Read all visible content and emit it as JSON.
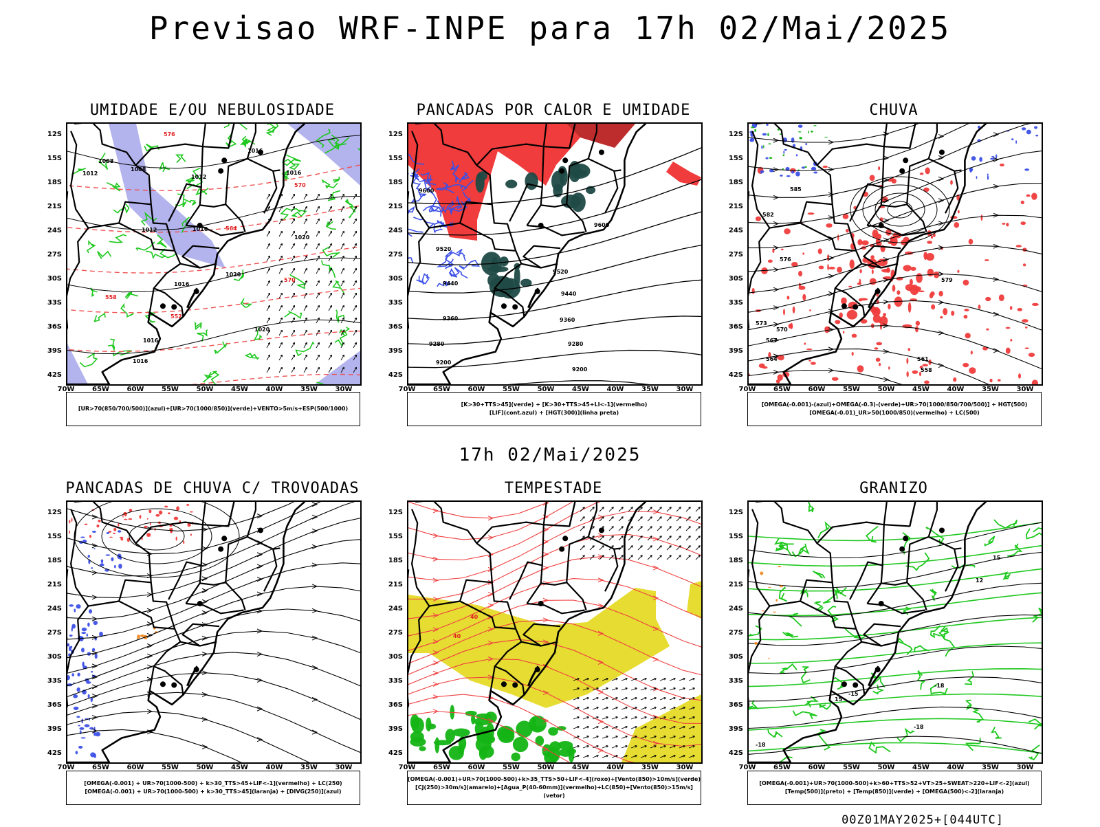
{
  "header": {
    "title": "Previsao WRF-INPE  para 17h 02/Mai/2025"
  },
  "mid_title": "17h 02/Mai/2025",
  "footer": "00Z01MAY2025+[044UTC]",
  "axes": {
    "lat_labels": [
      "12S",
      "15S",
      "18S",
      "21S",
      "24S",
      "27S",
      "30S",
      "33S",
      "36S",
      "39S",
      "42S"
    ],
    "lon_labels": [
      "70W",
      "65W",
      "60W",
      "55W",
      "50W",
      "45W",
      "40W",
      "35W",
      "30W"
    ]
  },
  "panels": [
    {
      "title": "UMIDADE E/OU NEBULOSIDADE",
      "legend": [
        "[UR>70(850/700/500)](azul)+[UR>70(1000/850)](verde)+VENTO>5m/s+ESP(500/1000)"
      ],
      "contour_labels": [
        "1008",
        "1012",
        "1008",
        "1012",
        "1016",
        "1016",
        "1012",
        "1016",
        "1020",
        "1016",
        "1020",
        "1016",
        "1020",
        "1016",
        "576",
        "570",
        "564",
        "558",
        "552",
        "570"
      ]
    },
    {
      "title": "PANCADAS POR CALOR E UMIDADE",
      "legend": [
        "[K>30+TTS>45](verde) + [K>30+TTS>45+LI<-1](vermelho)",
        "[LIF](cont.azul) + [HGT(300)](linha preta)"
      ],
      "contour_labels": [
        "9600",
        "9600",
        "9520",
        "9520",
        "9440",
        "9440",
        "9360",
        "9360",
        "9280",
        "9280",
        "9200",
        "9200"
      ]
    },
    {
      "title": "CHUVA",
      "legend": [
        "[OMEGA(-0.001)-(azul)+OMEGA(-0.3)-(verde)+UR>70(1000/850/700/500)] + HGT(500)",
        "[OMEGA(-0.01)_UR>50(1000/850)(vermelho) + LC(500)"
      ],
      "contour_labels": [
        "585",
        "582",
        "579",
        "576",
        "573",
        "570",
        "567",
        "564",
        "561",
        "558"
      ]
    },
    {
      "title": "PANCADAS DE CHUVA C/ TROVOADAS",
      "legend": [
        "[OMEGA(-0.001) + UR>70(1000-500) + k>30_TTS>45+LIF<-1](vermelho) + LC(250)",
        "[OMEGA(-0.001) + UR>70(1000-500) + k>30_TTS>45](laranja) + [DIVG(250)](azul)"
      ],
      "contour_labels": []
    },
    {
      "title": "TEMPESTADE",
      "legend": [
        "[OMEGA(-0.001)+UR>70(1000-500)+k>35_TTS>50+LIF<-4](roxo)+[Vento(850)>10m/s](verde)",
        "[CJ(250)>30m/s](amarelo)+[Agua_P(40-60mm)](vermelho)+LC(850)+[Vento(850)>15m/s](vetor)"
      ],
      "contour_labels": [
        "40",
        "40"
      ]
    },
    {
      "title": "GRANIZO",
      "legend": [
        "[OMEGA(-0.001)+UR>70(1000-500)+k>60+TTS>52+VT>25+SWEAT>220+LIF<-2](azul)",
        "[Temp(500)](preto) + [Temp(850)](verde) + [OMEGA(500)<-2](laranja)"
      ],
      "contour_labels": [
        "-18",
        "-18",
        "-15",
        "15",
        "12",
        "15",
        "-18"
      ]
    }
  ],
  "colors": {
    "blue_shade": "#b3b3ee",
    "green_contour": "#1ec81e",
    "red": "#f03c3c",
    "dark_teal": "#1f4a46",
    "yellow": "#e6dc32",
    "blue": "#3c50e6",
    "orange": "#f08c28",
    "green_fill": "#14b414"
  }
}
